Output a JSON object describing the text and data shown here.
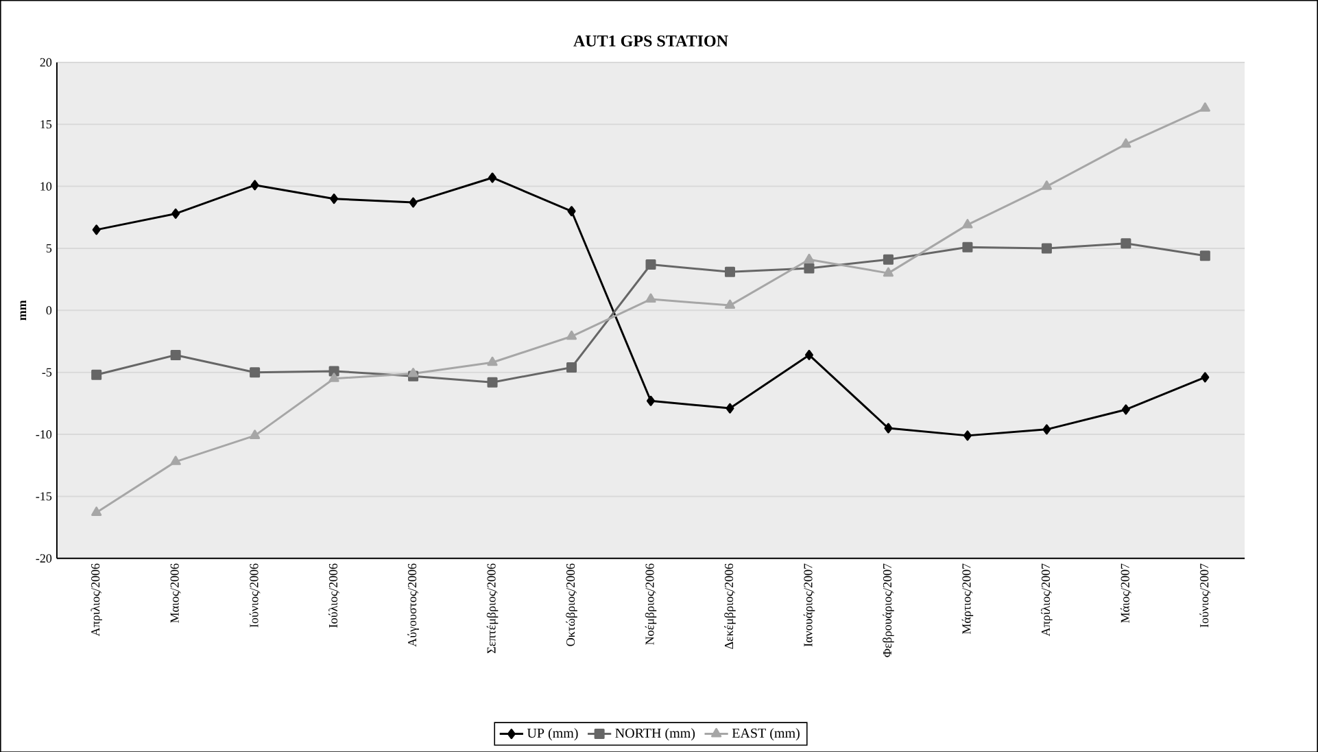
{
  "chart_data": {
    "type": "line",
    "title": "AUT1 GPS STATION",
    "ylabel": "mm",
    "categories": [
      "Απριλιος/2006",
      "Μαιος/2006",
      "Ιούνιος/2006",
      "Ιούλιος/2006",
      "Αύγουστος/2006",
      "Σεπτέμβριος/2006",
      "Οκτώβριος/2006",
      "Νοέμβριος/2006",
      "Δεκέμβριος/2006",
      "Ιανουάριος/2007",
      "Φεβρουάριος/2007",
      "Μάρτιος/2007",
      "Απρίλιος/2007",
      "Μάιος/2007",
      "Ιούνιος/2007"
    ],
    "series": [
      {
        "name": "UP (mm)",
        "color": "#000000",
        "marker": "diamond",
        "values": [
          6.5,
          7.8,
          10.1,
          9.0,
          8.7,
          10.7,
          8.0,
          -7.3,
          -7.9,
          -3.6,
          -9.5,
          -10.1,
          -9.6,
          -8.0,
          -5.4
        ]
      },
      {
        "name": "NORTH (mm)",
        "color": "#666666",
        "marker": "square",
        "values": [
          -5.2,
          -3.6,
          -5.0,
          -4.9,
          -5.3,
          -5.8,
          -4.6,
          3.7,
          3.1,
          3.4,
          4.1,
          5.1,
          5.0,
          5.4,
          4.4
        ]
      },
      {
        "name": "EAST (mm)",
        "color": "#a6a6a6",
        "marker": "triangle",
        "values": [
          -16.3,
          -12.2,
          -10.1,
          -5.5,
          -5.1,
          -4.2,
          -2.1,
          0.9,
          0.4,
          4.1,
          3.0,
          6.9,
          10.0,
          13.4,
          16.3
        ]
      }
    ],
    "ylim": [
      -20,
      20
    ],
    "yticks": [
      -20,
      -15,
      -10,
      -5,
      0,
      5,
      10,
      15,
      20
    ],
    "grid": "y",
    "legend": "bottom",
    "line_style": "solid"
  }
}
